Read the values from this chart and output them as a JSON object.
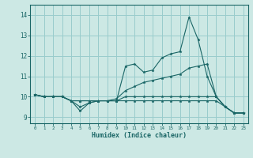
{
  "title": "",
  "xlabel": "Humidex (Indice chaleur)",
  "background_color": "#cce8e4",
  "grid_color": "#99cccc",
  "line_color": "#1a6666",
  "x_ticks": [
    0,
    1,
    2,
    3,
    4,
    5,
    6,
    7,
    8,
    9,
    10,
    11,
    12,
    13,
    14,
    15,
    16,
    17,
    18,
    19,
    20,
    21,
    22,
    23
  ],
  "y_ticks": [
    9,
    10,
    11,
    12,
    13,
    14
  ],
  "xlim": [
    -0.5,
    23.5
  ],
  "ylim": [
    8.7,
    14.5
  ],
  "series": [
    [
      10.1,
      10.0,
      10.0,
      10.0,
      9.8,
      9.3,
      9.7,
      9.8,
      9.8,
      9.8,
      11.5,
      11.6,
      11.2,
      11.3,
      11.9,
      12.1,
      12.2,
      13.9,
      12.8,
      11.0,
      10.0,
      9.5,
      9.2,
      9.2
    ],
    [
      10.1,
      10.0,
      10.0,
      10.0,
      9.8,
      9.8,
      9.8,
      9.8,
      9.8,
      9.8,
      9.8,
      9.8,
      9.8,
      9.8,
      9.8,
      9.8,
      9.8,
      9.8,
      9.8,
      9.8,
      9.8,
      9.5,
      9.2,
      9.2
    ],
    [
      10.1,
      10.0,
      10.0,
      10.0,
      9.8,
      9.8,
      9.8,
      9.8,
      9.8,
      9.9,
      10.3,
      10.5,
      10.7,
      10.8,
      10.9,
      11.0,
      11.1,
      11.4,
      11.5,
      11.6,
      10.0,
      9.5,
      9.2,
      9.2
    ],
    [
      10.1,
      10.0,
      10.0,
      10.0,
      9.8,
      9.5,
      9.7,
      9.8,
      9.8,
      9.8,
      10.0,
      10.0,
      10.0,
      10.0,
      10.0,
      10.0,
      10.0,
      10.0,
      10.0,
      10.0,
      10.0,
      9.5,
      9.2,
      9.2
    ]
  ]
}
